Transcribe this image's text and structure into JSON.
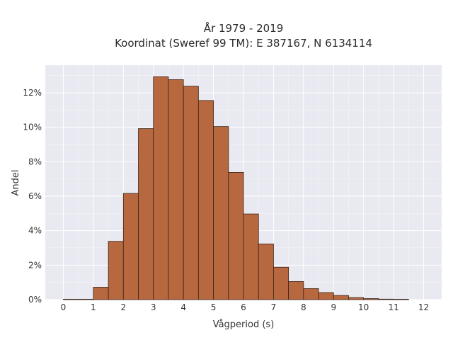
{
  "chart_data": {
    "type": "bar",
    "title": [
      "År 1979 - 2019",
      "Koordinat (Sweref 99 TM): E 387167, N 6134114"
    ],
    "xlabel": "Vågperiod (s)",
    "ylabel": "Andel",
    "xlim": [
      -0.6,
      12.6
    ],
    "ylim": [
      0,
      13.6
    ],
    "bin_width": 0.5,
    "x_ticks": [
      0,
      1,
      2,
      3,
      4,
      5,
      6,
      7,
      8,
      9,
      10,
      11,
      12
    ],
    "y_ticks": [
      0,
      2,
      4,
      6,
      8,
      10,
      12
    ],
    "y_tick_labels": [
      "0%",
      "2%",
      "4%",
      "6%",
      "8%",
      "10%",
      "12%"
    ],
    "grid": true,
    "bar_color": "#b8683f",
    "edge_color": "#3a2418",
    "background_color": "#e9e9f1",
    "bins": [
      {
        "x0": 0.0,
        "value": 0.02
      },
      {
        "x0": 0.5,
        "value": 0.0
      },
      {
        "x0": 1.0,
        "value": 0.72
      },
      {
        "x0": 1.5,
        "value": 3.38
      },
      {
        "x0": 2.0,
        "value": 6.16
      },
      {
        "x0": 2.5,
        "value": 9.92
      },
      {
        "x0": 3.0,
        "value": 12.93
      },
      {
        "x0": 3.5,
        "value": 12.76
      },
      {
        "x0": 4.0,
        "value": 12.38
      },
      {
        "x0": 4.5,
        "value": 11.55
      },
      {
        "x0": 5.0,
        "value": 10.04
      },
      {
        "x0": 5.5,
        "value": 7.38
      },
      {
        "x0": 6.0,
        "value": 4.97
      },
      {
        "x0": 6.5,
        "value": 3.23
      },
      {
        "x0": 7.0,
        "value": 1.88
      },
      {
        "x0": 7.5,
        "value": 1.05
      },
      {
        "x0": 8.0,
        "value": 0.64
      },
      {
        "x0": 8.5,
        "value": 0.41
      },
      {
        "x0": 9.0,
        "value": 0.24
      },
      {
        "x0": 9.5,
        "value": 0.12
      },
      {
        "x0": 10.0,
        "value": 0.06
      },
      {
        "x0": 10.5,
        "value": 0.03
      },
      {
        "x0": 11.0,
        "value": 0.01
      }
    ]
  }
}
